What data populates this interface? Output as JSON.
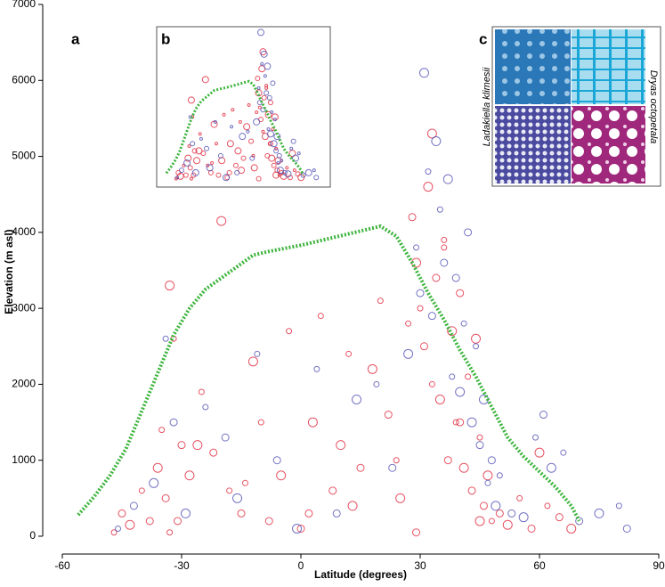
{
  "chart_data": {
    "type": "scatter",
    "xlabel": "Latitude (degrees)",
    "ylabel": "Elevation (m asl)",
    "xlim": [
      -60,
      90
    ],
    "ylim": [
      0,
      7000
    ],
    "xticks": [
      -60,
      -30,
      0,
      30,
      60,
      90
    ],
    "yticks": [
      0,
      1000,
      2000,
      3000,
      4000,
      5000,
      6000,
      7000
    ],
    "panel_labels": [
      "a",
      "b",
      "c"
    ],
    "inset_labels": [
      "Ladakiella klimesii",
      "Dryas octopetala"
    ],
    "series": [
      {
        "type": "scatter",
        "color": "#e0283c",
        "x": [
          -47,
          -45,
          -43,
          -40,
          -38,
          -36,
          -35,
          -34,
          -33,
          -32,
          -30,
          -28,
          -25,
          -22,
          -20,
          -18,
          -15,
          -12,
          -10,
          -8,
          -5,
          -3,
          0,
          3,
          5,
          8,
          10,
          12,
          15,
          18,
          20,
          22,
          25,
          27,
          28,
          29,
          30,
          31,
          32,
          33,
          34,
          35,
          36,
          37,
          38,
          39,
          40,
          41,
          42,
          43,
          44,
          45,
          46,
          47,
          48,
          50,
          52,
          55,
          58,
          60,
          62,
          65,
          68,
          -33,
          -31,
          -26,
          -14,
          2,
          13,
          24,
          29,
          33,
          36,
          40,
          45
        ],
        "values": [
          50,
          300,
          150,
          600,
          200,
          900,
          1400,
          500,
          3300,
          2600,
          1200,
          800,
          1900,
          1100,
          4150,
          600,
          300,
          2300,
          1500,
          200,
          800,
          2700,
          100,
          1500,
          2900,
          600,
          1200,
          2400,
          900,
          2200,
          3100,
          1600,
          500,
          2800,
          4200,
          3600,
          3000,
          2500,
          4600,
          2000,
          3400,
          1800,
          3900,
          1000,
          2700,
          1500,
          3200,
          900,
          2100,
          600,
          2600,
          1300,
          400,
          800,
          200,
          300,
          150,
          500,
          100,
          1100,
          400,
          250,
          100,
          50,
          200,
          1200,
          700,
          300,
          400,
          1000,
          50,
          5300,
          3800,
          1500,
          200
        ]
      },
      {
        "type": "scatter",
        "color": "#5050b4",
        "x": [
          -46,
          -42,
          -37,
          -34,
          -32,
          -29,
          -24,
          -19,
          -16,
          -11,
          -6,
          -1,
          4,
          9,
          14,
          19,
          23,
          27,
          29,
          30,
          31,
          32,
          33,
          34,
          35,
          36,
          37,
          38,
          39,
          40,
          41,
          42,
          43,
          44,
          45,
          46,
          47,
          48,
          49,
          50,
          53,
          56,
          59,
          61,
          63,
          66,
          70,
          75,
          80,
          82
        ],
        "values": [
          100,
          400,
          700,
          2600,
          1500,
          300,
          1700,
          1300,
          500,
          2400,
          1000,
          100,
          2200,
          300,
          1800,
          2000,
          900,
          2400,
          3800,
          3200,
          6100,
          4800,
          2900,
          5200,
          4300,
          3600,
          4700,
          2100,
          3400,
          1900,
          2800,
          4000,
          1500,
          2500,
          1200,
          1800,
          700,
          1000,
          400,
          800,
          300,
          250,
          1300,
          1600,
          900,
          1100,
          200,
          300,
          400,
          100
        ]
      },
      {
        "type": "line",
        "color": "#3cb43c",
        "x": [
          -56,
          -52,
          -48,
          -44,
          -40,
          -36,
          -32,
          -28,
          -24,
          -20,
          -16,
          -12,
          -8,
          -4,
          0,
          4,
          8,
          12,
          16,
          20,
          24,
          28,
          32,
          36,
          40,
          44,
          48,
          52,
          56,
          60,
          64,
          68,
          70
        ],
        "values": [
          280,
          520,
          800,
          1150,
          1650,
          2150,
          2650,
          3000,
          3250,
          3400,
          3550,
          3700,
          3750,
          3790,
          3830,
          3880,
          3930,
          3980,
          4030,
          4080,
          3950,
          3600,
          3200,
          2850,
          2450,
          2100,
          1700,
          1300,
          1050,
          850,
          650,
          400,
          200
        ]
      }
    ]
  }
}
